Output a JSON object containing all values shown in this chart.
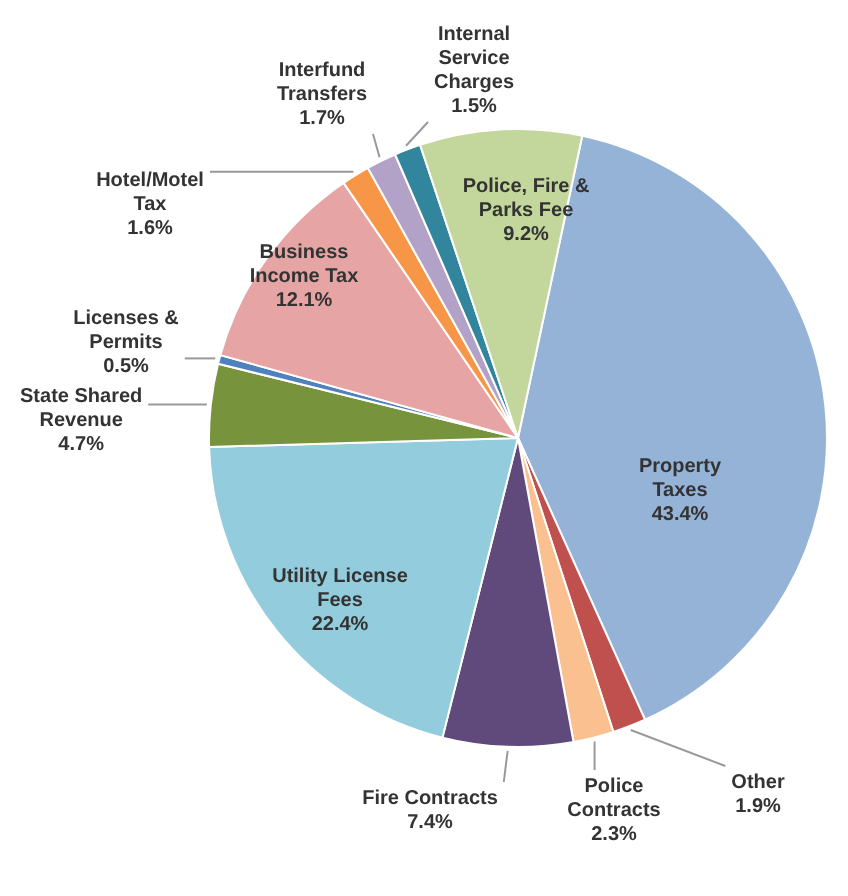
{
  "chart_data": {
    "type": "pie",
    "categories": [
      "Property Taxes",
      "Other",
      "Police Contracts",
      "Fire Contracts",
      "Utility License Fees",
      "State Shared Revenue",
      "Licenses & Permits",
      "Business Income Tax",
      "Hotel/Motel Tax",
      "Interfund Transfers",
      "Internal Service Charges",
      "Police, Fire & Parks Fee"
    ],
    "values": [
      43.4,
      1.9,
      2.3,
      7.4,
      22.4,
      4.7,
      0.5,
      12.1,
      1.6,
      1.7,
      1.5,
      9.2
    ],
    "value_labels": [
      "43.4%",
      "1.9%",
      "2.3%",
      "7.4%",
      "22.4%",
      "4.7%",
      "0.5%",
      "12.1%",
      "1.6%",
      "1.7%",
      "1.5%",
      "9.2%"
    ],
    "colors": [
      "#95b3d7",
      "#c0504d",
      "#fac090",
      "#604a7b",
      "#93cddd",
      "#77933c",
      "#4f81bd",
      "#e6a5a4",
      "#f79646",
      "#b3a2c7",
      "#31859c",
      "#c3d69b"
    ],
    "legend": false
  }
}
